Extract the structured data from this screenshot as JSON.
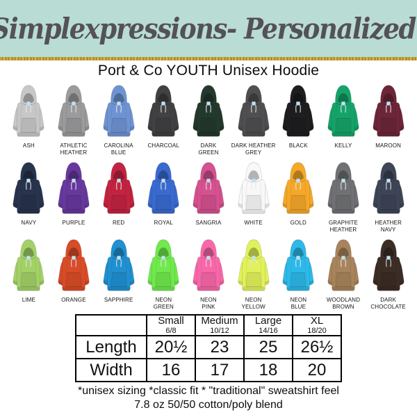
{
  "banner": {
    "shop_title": "Simplexpressions- Personalized!",
    "bg_color": "#b9dcd5",
    "text_color": "#545254",
    "stripe_color": "#c9a537"
  },
  "product": {
    "title": "Port & Co YOUTH Unisex Hoodie"
  },
  "colors": {
    "rows": [
      [
        {
          "label": "ASH",
          "hex": "#c7c7c7"
        },
        {
          "label": "ATHLETIC\nHEATHER",
          "hex": "#9b9b9d"
        },
        {
          "label": "CAROLINA\nBLUE",
          "hex": "#6f93d2"
        },
        {
          "label": "CHARCOAL",
          "hex": "#414042"
        },
        {
          "label": "DARK\nGREEN",
          "hex": "#24392e"
        },
        {
          "label": "DARK HEATHER\nGREY",
          "hex": "#4f4f52"
        },
        {
          "label": "BLACK",
          "hex": "#1e1d1f"
        },
        {
          "label": "KELLY",
          "hex": "#16a369"
        },
        {
          "label": "MAROON",
          "hex": "#6d2639"
        }
      ],
      [
        {
          "label": "NAVY",
          "hex": "#28344d"
        },
        {
          "label": "PURPLE",
          "hex": "#67389e"
        },
        {
          "label": "RED",
          "hex": "#c22340"
        },
        {
          "label": "ROYAL",
          "hex": "#3a6ad0"
        },
        {
          "label": "SANGRIA",
          "hex": "#d5518f"
        },
        {
          "label": "WHITE",
          "hex": "#f8f8f8"
        },
        {
          "label": "GOLD",
          "hex": "#f5a829"
        },
        {
          "label": "GRAPHITE\nHEATHER",
          "hex": "#707174"
        },
        {
          "label": "HEATHER\nNAVY",
          "hex": "#3e4557"
        }
      ],
      [
        {
          "label": "LIME",
          "hex": "#a3d168"
        },
        {
          "label": "ORANGE",
          "hex": "#d84c28"
        },
        {
          "label": "SAPPHIRE",
          "hex": "#2090d0"
        },
        {
          "label": "NEON\nGREEN",
          "hex": "#70e94d"
        },
        {
          "label": "NEON\nPINK",
          "hex": "#f868a9"
        },
        {
          "label": "NEON\nYELLOW",
          "hex": "#e1f15b"
        },
        {
          "label": "NEON\nBLUE",
          "hex": "#2db9e9"
        },
        {
          "label": "WOODLAND\nBROWN",
          "hex": "#a8845c"
        },
        {
          "label": "DARK\nCHOCOLATE",
          "hex": "#3c2d25"
        }
      ]
    ]
  },
  "size_table": {
    "corner": "",
    "columns": [
      {
        "size": "Small",
        "range": "6/8"
      },
      {
        "size": "Medium",
        "range": "10/12"
      },
      {
        "size": "Large",
        "range": "14/16"
      },
      {
        "size": "XL",
        "range": "18/20"
      }
    ],
    "rows": [
      {
        "label": "Length",
        "values": [
          "20½",
          "23",
          "25",
          "26½"
        ]
      },
      {
        "label": "Width",
        "values": [
          "16",
          "17",
          "18",
          "20"
        ]
      }
    ]
  },
  "footer": {
    "line1": "*unisex sizing *classic fit * \"traditional\" sweatshirt feel",
    "line2": "7.8 oz 50/50 cotton/poly blend"
  }
}
